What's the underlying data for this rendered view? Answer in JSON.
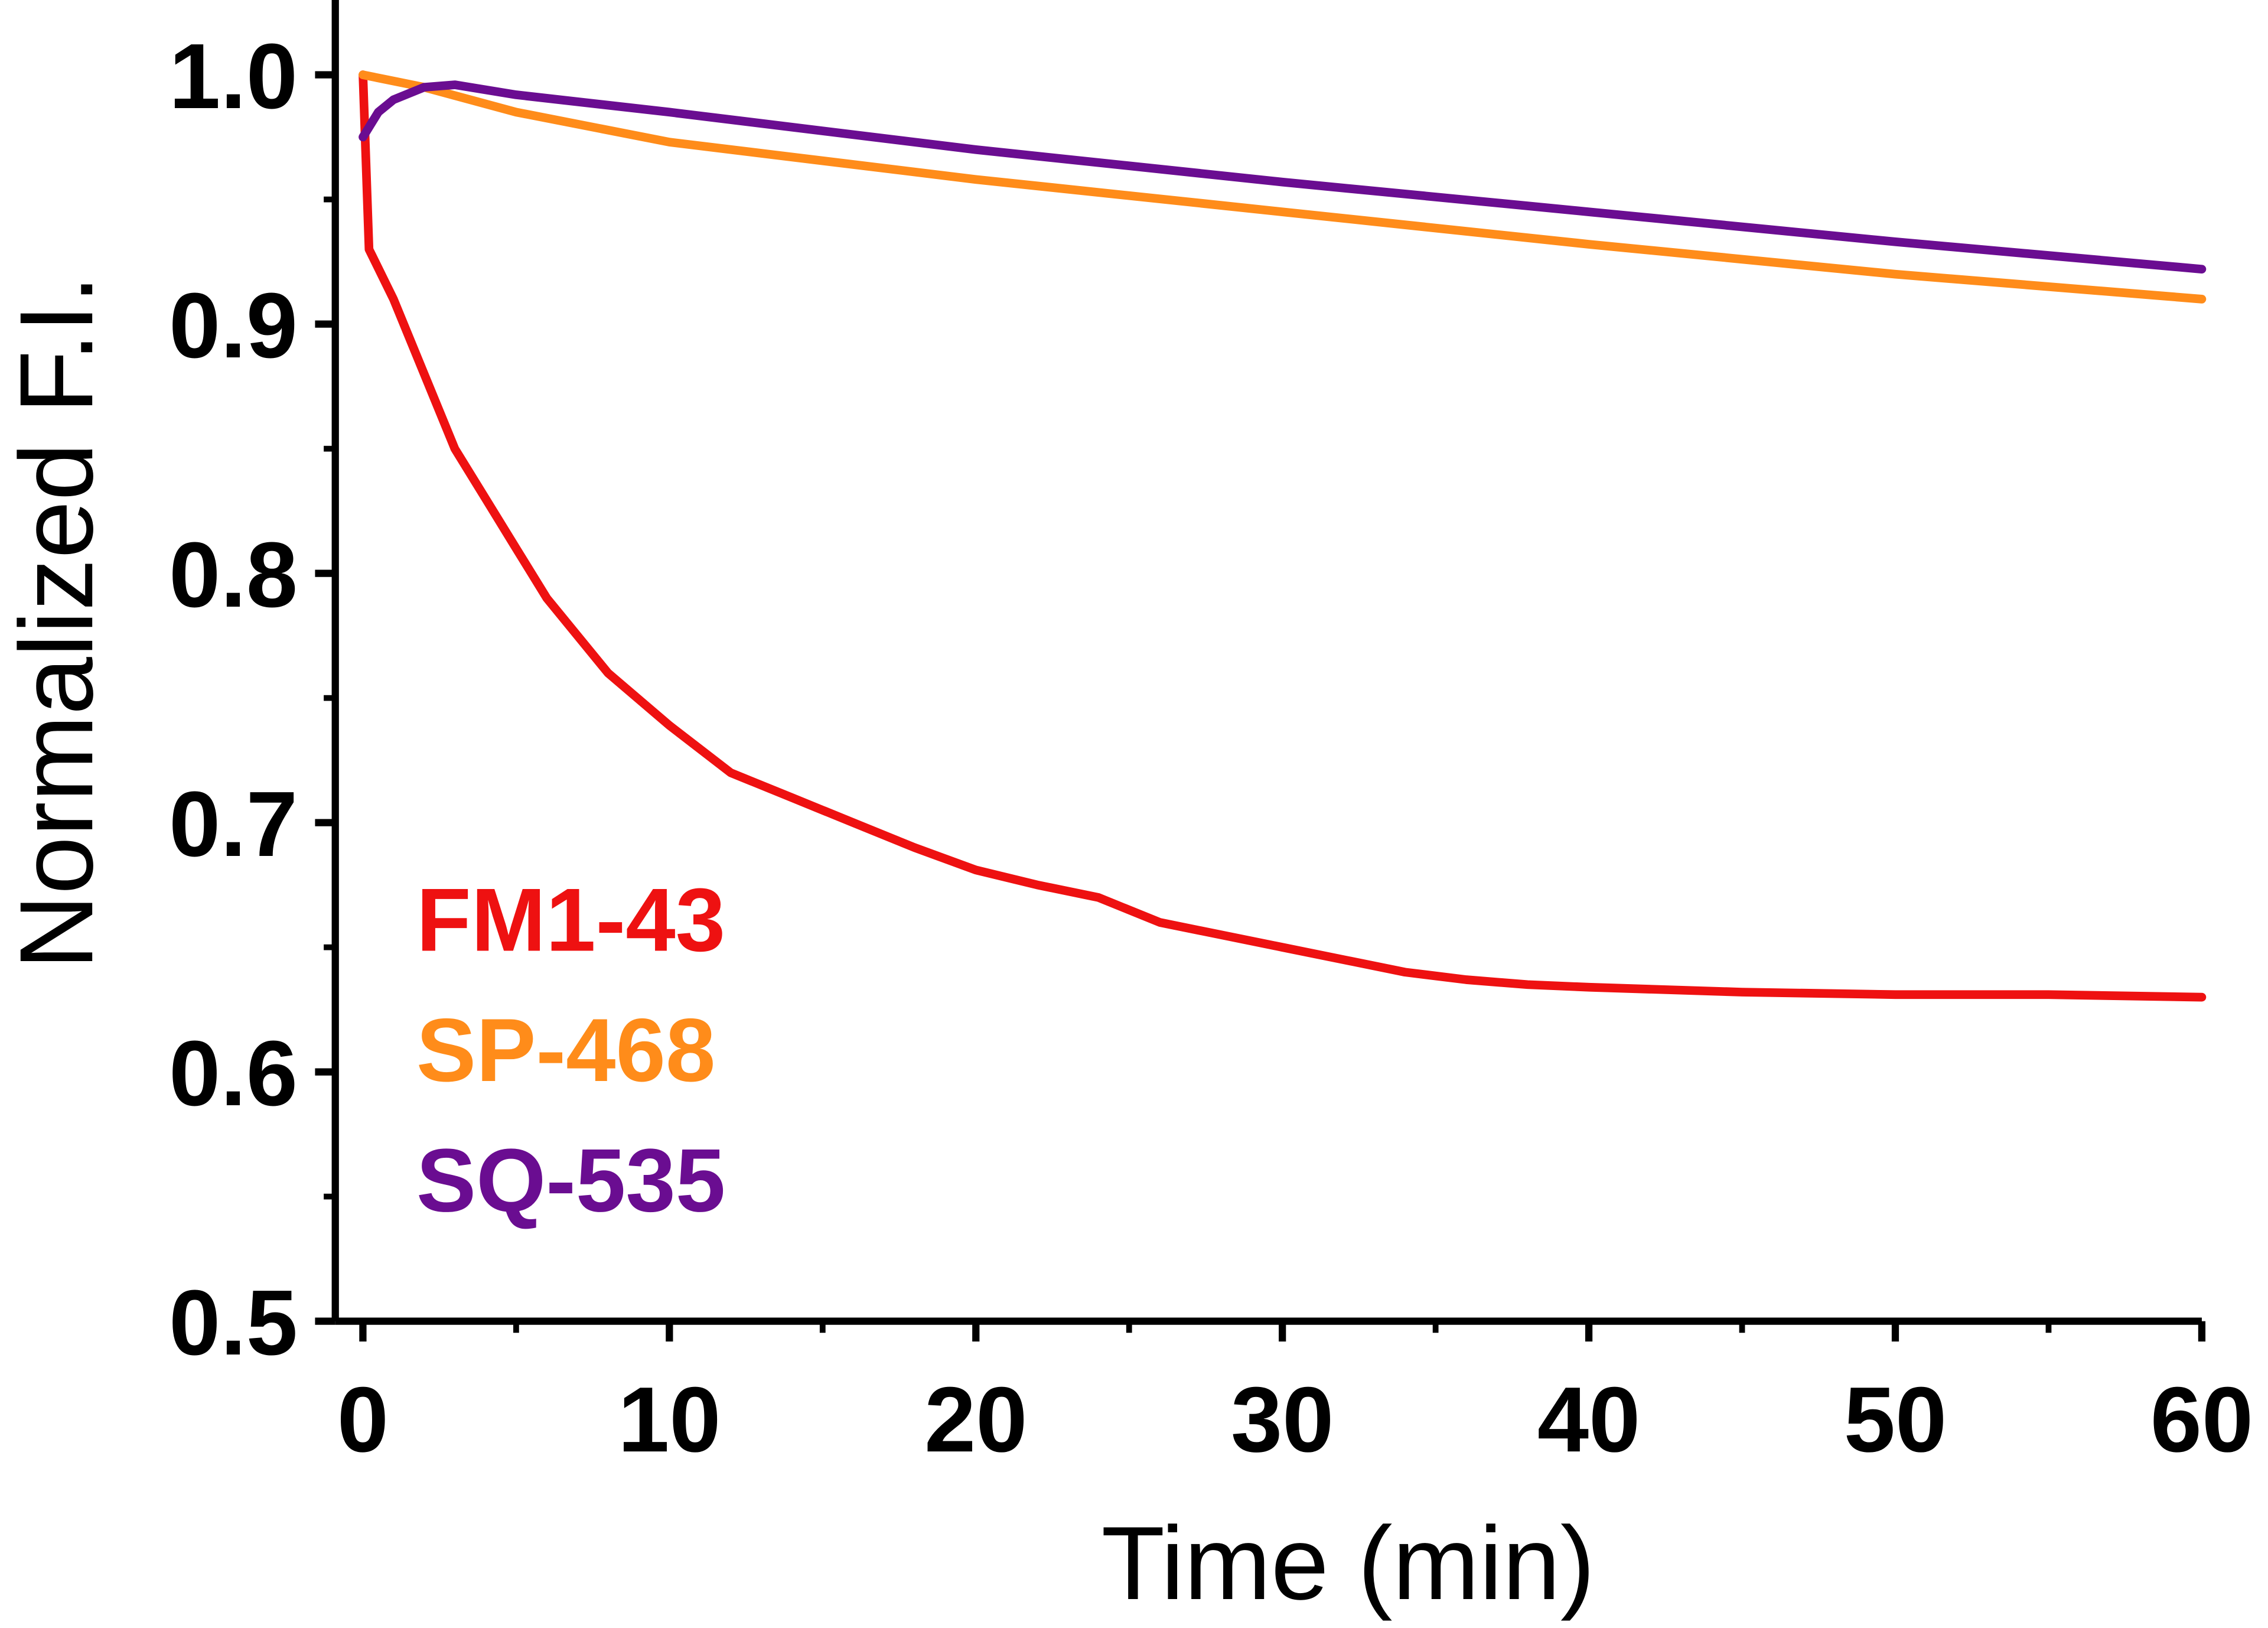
{
  "chart_data": {
    "type": "line",
    "x_label": "Time (min)",
    "y_label": "Normalized F.I.",
    "xlim": [
      -0.9,
      60
    ],
    "ylim": [
      0.5,
      1.03
    ],
    "xticks": [
      0,
      10,
      20,
      30,
      40,
      50,
      60
    ],
    "xminorticks": [
      5,
      15,
      25,
      35,
      45,
      55
    ],
    "yticks": [
      {
        "value": 0.5,
        "label": "0.5"
      },
      {
        "value": 0.6,
        "label": "0.6"
      },
      {
        "value": 0.7,
        "label": "0.7"
      },
      {
        "value": 0.8,
        "label": "0.8"
      },
      {
        "value": 0.9,
        "label": "0.9"
      },
      {
        "value": 1.0,
        "label": "1.0"
      }
    ],
    "yminorticks": [
      0.55,
      0.65,
      0.75,
      0.85,
      0.95
    ],
    "series": [
      {
        "name": "FM1-43",
        "color": "#ee1111",
        "x": [
          0,
          0.2,
          1,
          2,
          3,
          4,
          5,
          6,
          8,
          10,
          12,
          14,
          16,
          18,
          20,
          22,
          24,
          26,
          28,
          30,
          32,
          34,
          36,
          38,
          40,
          45,
          50,
          55,
          60
        ],
        "values": [
          1.0,
          0.93,
          0.91,
          0.88,
          0.85,
          0.83,
          0.81,
          0.79,
          0.76,
          0.739,
          0.72,
          0.71,
          0.7,
          0.69,
          0.681,
          0.675,
          0.67,
          0.66,
          0.655,
          0.65,
          0.645,
          0.64,
          0.637,
          0.635,
          0.634,
          0.632,
          0.631,
          0.631,
          0.63
        ]
      },
      {
        "name": "SP-468",
        "color": "#ff8c1a",
        "x": [
          0,
          2,
          5,
          10,
          20,
          30,
          40,
          50,
          60
        ],
        "values": [
          1.0,
          0.995,
          0.985,
          0.973,
          0.958,
          0.945,
          0.932,
          0.92,
          0.91
        ]
      },
      {
        "name": "SQ-535",
        "color": "#6a0d91",
        "x": [
          0,
          0.5,
          1,
          2,
          3,
          5,
          10,
          20,
          30,
          40,
          50,
          60
        ],
        "values": [
          0.975,
          0.985,
          0.99,
          0.995,
          0.996,
          0.992,
          0.985,
          0.97,
          0.957,
          0.945,
          0.933,
          0.922
        ]
      }
    ]
  }
}
